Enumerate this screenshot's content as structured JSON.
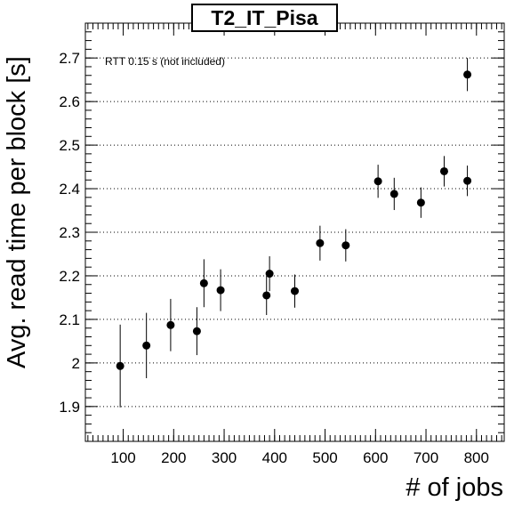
{
  "chart_data": {
    "type": "scatter",
    "title": "T2_IT_Pisa",
    "xlabel": "# of jobs",
    "ylabel": "Avg. read time per block [s]",
    "annotation": "RTT 0.15 s (not included)",
    "xlim": [
      25,
      855
    ],
    "ylim": [
      1.82,
      2.78
    ],
    "x_ticks": [
      100,
      200,
      300,
      400,
      500,
      600,
      700,
      800
    ],
    "y_ticks": [
      1.9,
      2,
      2.1,
      2.2,
      2.3,
      2.4,
      2.5,
      2.6,
      2.7
    ],
    "y_tick_labels": [
      "1.9",
      "2",
      "2.1",
      "2.2",
      "2.3",
      "2.4",
      "2.5",
      "2.6",
      "2.7"
    ],
    "grid": "y-dotted",
    "points": [
      {
        "x": 94,
        "y": 1.993,
        "err": 0.095
      },
      {
        "x": 146,
        "y": 2.04,
        "err": 0.075
      },
      {
        "x": 194,
        "y": 2.087,
        "err": 0.06
      },
      {
        "x": 246,
        "y": 2.073,
        "err": 0.055
      },
      {
        "x": 260,
        "y": 2.183,
        "err": 0.055
      },
      {
        "x": 293,
        "y": 2.167,
        "err": 0.048
      },
      {
        "x": 384,
        "y": 2.155,
        "err": 0.045
      },
      {
        "x": 390,
        "y": 2.205,
        "err": 0.04
      },
      {
        "x": 440,
        "y": 2.165,
        "err": 0.038
      },
      {
        "x": 490,
        "y": 2.275,
        "err": 0.04
      },
      {
        "x": 541,
        "y": 2.27,
        "err": 0.037
      },
      {
        "x": 605,
        "y": 2.417,
        "err": 0.038
      },
      {
        "x": 637,
        "y": 2.388,
        "err": 0.037
      },
      {
        "x": 690,
        "y": 2.368,
        "err": 0.035
      },
      {
        "x": 736,
        "y": 2.44,
        "err": 0.035
      },
      {
        "x": 782,
        "y": 2.418,
        "err": 0.035
      },
      {
        "x": 782,
        "y": 2.662,
        "err": 0.038
      }
    ]
  }
}
